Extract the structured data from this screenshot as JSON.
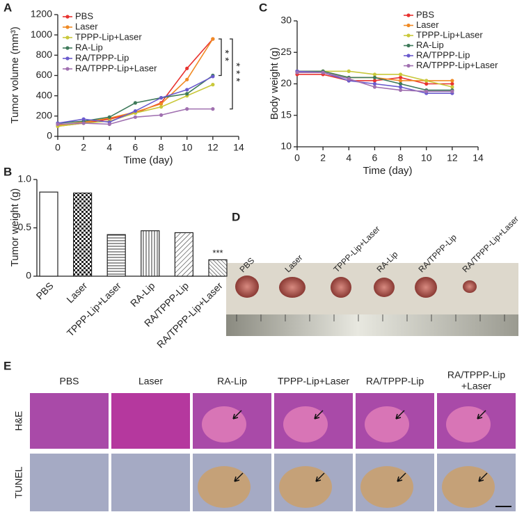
{
  "chart_data": [
    {
      "type": "line",
      "panel_label": "A",
      "ylabel": "Tumor volume (mm³)",
      "xlabel": "Time (day)",
      "x": [
        0,
        2,
        4,
        6,
        8,
        10,
        12
      ],
      "xlim": [
        0,
        14
      ],
      "xticks": [
        0,
        2,
        4,
        6,
        8,
        10,
        12,
        14
      ],
      "ylim": [
        0,
        1200
      ],
      "yticks": [
        0,
        200,
        400,
        600,
        800,
        1000,
        1200
      ],
      "series": [
        {
          "name": "PBS",
          "color": "#e8322f",
          "values": [
            100,
            130,
            170,
            230,
            330,
            670,
            960
          ]
        },
        {
          "name": "Laser",
          "color": "#f08a24",
          "values": [
            110,
            140,
            180,
            240,
            320,
            560,
            960
          ]
        },
        {
          "name": "TPPP-Lip+Laser",
          "color": "#c9c83a",
          "values": [
            100,
            130,
            150,
            230,
            290,
            400,
            510
          ]
        },
        {
          "name": "RA-Lip",
          "color": "#3e7a5a",
          "values": [
            130,
            150,
            190,
            330,
            380,
            420,
            600
          ]
        },
        {
          "name": "RA/TPPP-Lip",
          "color": "#6a5acd",
          "values": [
            130,
            170,
            140,
            250,
            380,
            460,
            590
          ]
        },
        {
          "name": "RA/TPPP-Lip+Laser",
          "color": "#a070b0",
          "values": [
            120,
            130,
            120,
            190,
            210,
            270,
            270
          ]
        }
      ],
      "annotations": [
        "**",
        "***"
      ]
    },
    {
      "type": "bar",
      "panel_label": "B",
      "ylabel": "Tumor weight (g)",
      "categories": [
        "PBS",
        "Laser",
        "TPPP-Lip+Laser",
        "RA-Lip",
        "RA/TPPP-Lip",
        "RA/TPPP-Lip+Laser"
      ],
      "values": [
        0.87,
        0.86,
        0.43,
        0.47,
        0.45,
        0.17
      ],
      "ylim": [
        0,
        1
      ],
      "yticks": [
        0,
        0.5,
        {
          "value": 1,
          "label": "1.0"
        }
      ],
      "annotations": [
        "***"
      ]
    },
    {
      "type": "line",
      "panel_label": "C",
      "ylabel": "Body weight (g)",
      "xlabel": "Time (day)",
      "x": [
        0,
        2,
        4,
        6,
        8,
        10,
        12
      ],
      "xlim": [
        0,
        14
      ],
      "xticks": [
        0,
        2,
        4,
        6,
        8,
        10,
        12,
        14
      ],
      "ylim": [
        10,
        30
      ],
      "yticks": [
        10,
        15,
        20,
        25,
        30
      ],
      "series": [
        {
          "name": "PBS",
          "color": "#e8322f",
          "values": [
            21.5,
            21.5,
            20.5,
            20.5,
            21,
            20,
            20
          ]
        },
        {
          "name": "Laser",
          "color": "#f08a24",
          "values": [
            22,
            22,
            21,
            21,
            20.5,
            20.5,
            20.5
          ]
        },
        {
          "name": "TPPP-Lip+Laser",
          "color": "#c9c83a",
          "values": [
            22,
            22,
            22,
            21.5,
            21.5,
            20.5,
            19.5
          ]
        },
        {
          "name": "RA-Lip",
          "color": "#3e7a5a",
          "values": [
            22,
            22,
            21,
            21,
            20,
            19,
            19
          ]
        },
        {
          "name": "RA/TPPP-Lip",
          "color": "#6a5acd",
          "values": [
            22,
            21.8,
            20.5,
            20,
            19.5,
            18.5,
            18.5
          ]
        },
        {
          "name": "RA/TPPP-Lip+Laser",
          "color": "#a070b0",
          "values": [
            21.8,
            21.8,
            20.8,
            19.5,
            19,
            18.8,
            18.8
          ]
        }
      ]
    }
  ],
  "photo_panel": {
    "label": "D",
    "groups": [
      "PBS",
      "Laser",
      "TPPP-Lip+Laser",
      "RA-Lip",
      "RA/TPPP-Lip",
      "RA/TPPP-Lip+Laser"
    ]
  },
  "histology_panel": {
    "label": "E",
    "columns": [
      [
        "PBS"
      ],
      [
        "Laser"
      ],
      [
        "RA-Lip"
      ],
      [
        "TPPP-Lip+Laser"
      ],
      [
        "RA/TPPP-Lip"
      ],
      [
        "RA/TPPP-Lip",
        "+Laser"
      ]
    ],
    "rows": [
      "H&E",
      "TUNEL"
    ]
  }
}
